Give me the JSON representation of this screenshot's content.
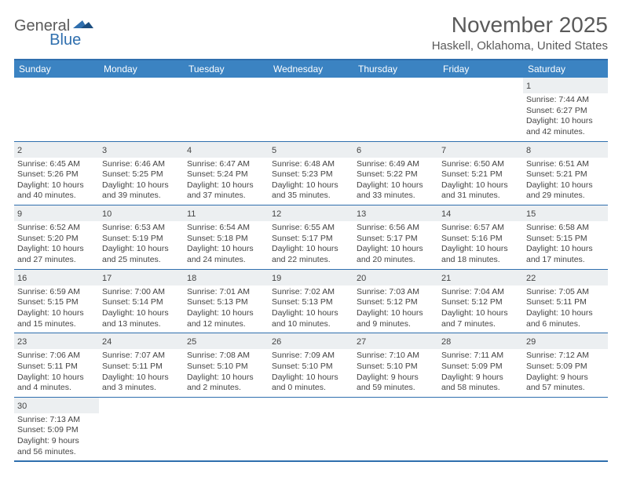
{
  "logo": {
    "text1": "General",
    "text2": "Blue"
  },
  "title": "November 2025",
  "location": "Haskell, Oklahoma, United States",
  "colors": {
    "headerBg": "#3b83c2",
    "borderBlue": "#2f6fae",
    "dayNumBg": "#eceff1",
    "textGray": "#5a5a5a"
  },
  "dayNames": [
    "Sunday",
    "Monday",
    "Tuesday",
    "Wednesday",
    "Thursday",
    "Friday",
    "Saturday"
  ],
  "weeks": [
    [
      null,
      null,
      null,
      null,
      null,
      null,
      {
        "n": "1",
        "sunrise": "Sunrise: 7:44 AM",
        "sunset": "Sunset: 6:27 PM",
        "daylight1": "Daylight: 10 hours",
        "daylight2": "and 42 minutes."
      }
    ],
    [
      {
        "n": "2",
        "sunrise": "Sunrise: 6:45 AM",
        "sunset": "Sunset: 5:26 PM",
        "daylight1": "Daylight: 10 hours",
        "daylight2": "and 40 minutes."
      },
      {
        "n": "3",
        "sunrise": "Sunrise: 6:46 AM",
        "sunset": "Sunset: 5:25 PM",
        "daylight1": "Daylight: 10 hours",
        "daylight2": "and 39 minutes."
      },
      {
        "n": "4",
        "sunrise": "Sunrise: 6:47 AM",
        "sunset": "Sunset: 5:24 PM",
        "daylight1": "Daylight: 10 hours",
        "daylight2": "and 37 minutes."
      },
      {
        "n": "5",
        "sunrise": "Sunrise: 6:48 AM",
        "sunset": "Sunset: 5:23 PM",
        "daylight1": "Daylight: 10 hours",
        "daylight2": "and 35 minutes."
      },
      {
        "n": "6",
        "sunrise": "Sunrise: 6:49 AM",
        "sunset": "Sunset: 5:22 PM",
        "daylight1": "Daylight: 10 hours",
        "daylight2": "and 33 minutes."
      },
      {
        "n": "7",
        "sunrise": "Sunrise: 6:50 AM",
        "sunset": "Sunset: 5:21 PM",
        "daylight1": "Daylight: 10 hours",
        "daylight2": "and 31 minutes."
      },
      {
        "n": "8",
        "sunrise": "Sunrise: 6:51 AM",
        "sunset": "Sunset: 5:21 PM",
        "daylight1": "Daylight: 10 hours",
        "daylight2": "and 29 minutes."
      }
    ],
    [
      {
        "n": "9",
        "sunrise": "Sunrise: 6:52 AM",
        "sunset": "Sunset: 5:20 PM",
        "daylight1": "Daylight: 10 hours",
        "daylight2": "and 27 minutes."
      },
      {
        "n": "10",
        "sunrise": "Sunrise: 6:53 AM",
        "sunset": "Sunset: 5:19 PM",
        "daylight1": "Daylight: 10 hours",
        "daylight2": "and 25 minutes."
      },
      {
        "n": "11",
        "sunrise": "Sunrise: 6:54 AM",
        "sunset": "Sunset: 5:18 PM",
        "daylight1": "Daylight: 10 hours",
        "daylight2": "and 24 minutes."
      },
      {
        "n": "12",
        "sunrise": "Sunrise: 6:55 AM",
        "sunset": "Sunset: 5:17 PM",
        "daylight1": "Daylight: 10 hours",
        "daylight2": "and 22 minutes."
      },
      {
        "n": "13",
        "sunrise": "Sunrise: 6:56 AM",
        "sunset": "Sunset: 5:17 PM",
        "daylight1": "Daylight: 10 hours",
        "daylight2": "and 20 minutes."
      },
      {
        "n": "14",
        "sunrise": "Sunrise: 6:57 AM",
        "sunset": "Sunset: 5:16 PM",
        "daylight1": "Daylight: 10 hours",
        "daylight2": "and 18 minutes."
      },
      {
        "n": "15",
        "sunrise": "Sunrise: 6:58 AM",
        "sunset": "Sunset: 5:15 PM",
        "daylight1": "Daylight: 10 hours",
        "daylight2": "and 17 minutes."
      }
    ],
    [
      {
        "n": "16",
        "sunrise": "Sunrise: 6:59 AM",
        "sunset": "Sunset: 5:15 PM",
        "daylight1": "Daylight: 10 hours",
        "daylight2": "and 15 minutes."
      },
      {
        "n": "17",
        "sunrise": "Sunrise: 7:00 AM",
        "sunset": "Sunset: 5:14 PM",
        "daylight1": "Daylight: 10 hours",
        "daylight2": "and 13 minutes."
      },
      {
        "n": "18",
        "sunrise": "Sunrise: 7:01 AM",
        "sunset": "Sunset: 5:13 PM",
        "daylight1": "Daylight: 10 hours",
        "daylight2": "and 12 minutes."
      },
      {
        "n": "19",
        "sunrise": "Sunrise: 7:02 AM",
        "sunset": "Sunset: 5:13 PM",
        "daylight1": "Daylight: 10 hours",
        "daylight2": "and 10 minutes."
      },
      {
        "n": "20",
        "sunrise": "Sunrise: 7:03 AM",
        "sunset": "Sunset: 5:12 PM",
        "daylight1": "Daylight: 10 hours",
        "daylight2": "and 9 minutes."
      },
      {
        "n": "21",
        "sunrise": "Sunrise: 7:04 AM",
        "sunset": "Sunset: 5:12 PM",
        "daylight1": "Daylight: 10 hours",
        "daylight2": "and 7 minutes."
      },
      {
        "n": "22",
        "sunrise": "Sunrise: 7:05 AM",
        "sunset": "Sunset: 5:11 PM",
        "daylight1": "Daylight: 10 hours",
        "daylight2": "and 6 minutes."
      }
    ],
    [
      {
        "n": "23",
        "sunrise": "Sunrise: 7:06 AM",
        "sunset": "Sunset: 5:11 PM",
        "daylight1": "Daylight: 10 hours",
        "daylight2": "and 4 minutes."
      },
      {
        "n": "24",
        "sunrise": "Sunrise: 7:07 AM",
        "sunset": "Sunset: 5:11 PM",
        "daylight1": "Daylight: 10 hours",
        "daylight2": "and 3 minutes."
      },
      {
        "n": "25",
        "sunrise": "Sunrise: 7:08 AM",
        "sunset": "Sunset: 5:10 PM",
        "daylight1": "Daylight: 10 hours",
        "daylight2": "and 2 minutes."
      },
      {
        "n": "26",
        "sunrise": "Sunrise: 7:09 AM",
        "sunset": "Sunset: 5:10 PM",
        "daylight1": "Daylight: 10 hours",
        "daylight2": "and 0 minutes."
      },
      {
        "n": "27",
        "sunrise": "Sunrise: 7:10 AM",
        "sunset": "Sunset: 5:10 PM",
        "daylight1": "Daylight: 9 hours",
        "daylight2": "and 59 minutes."
      },
      {
        "n": "28",
        "sunrise": "Sunrise: 7:11 AM",
        "sunset": "Sunset: 5:09 PM",
        "daylight1": "Daylight: 9 hours",
        "daylight2": "and 58 minutes."
      },
      {
        "n": "29",
        "sunrise": "Sunrise: 7:12 AM",
        "sunset": "Sunset: 5:09 PM",
        "daylight1": "Daylight: 9 hours",
        "daylight2": "and 57 minutes."
      }
    ],
    [
      {
        "n": "30",
        "sunrise": "Sunrise: 7:13 AM",
        "sunset": "Sunset: 5:09 PM",
        "daylight1": "Daylight: 9 hours",
        "daylight2": "and 56 minutes."
      },
      null,
      null,
      null,
      null,
      null,
      null
    ]
  ]
}
